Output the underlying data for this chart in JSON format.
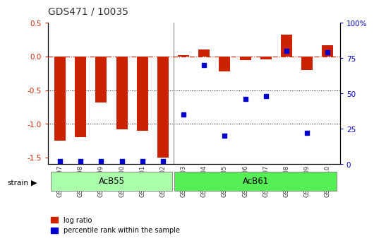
{
  "title": "GDS471 / 10035",
  "samples": [
    "GSM10997",
    "GSM10998",
    "GSM10999",
    "GSM11000",
    "GSM11001",
    "GSM11002",
    "GSM11003",
    "GSM11004",
    "GSM11005",
    "GSM11006",
    "GSM11007",
    "GSM11008",
    "GSM11009",
    "GSM11010"
  ],
  "log_ratio": [
    -1.25,
    -1.2,
    -0.68,
    -1.08,
    -1.1,
    -1.5,
    0.02,
    0.1,
    -0.22,
    -0.05,
    -0.04,
    0.32,
    -0.2,
    0.17
  ],
  "percentile_rank": [
    2,
    2,
    2,
    2,
    2,
    2,
    35,
    70,
    20,
    46,
    48,
    80,
    22,
    79
  ],
  "groups": [
    {
      "name": "AcB55",
      "start": 0,
      "end": 5,
      "color": "#aaffaa"
    },
    {
      "name": "AcB61",
      "start": 6,
      "end": 13,
      "color": "#55ee55"
    }
  ],
  "ylim_left": [
    -1.6,
    0.5
  ],
  "ylim_right": [
    0,
    100
  ],
  "bar_color": "#cc2200",
  "dot_color": "#0000cc",
  "zero_line_color": "#cc2200",
  "dotted_line_color": "#000000",
  "background_color": "#ffffff",
  "tick_label_color_left": "#cc2200",
  "tick_label_color_right": "#0000cc",
  "yticks_left": [
    -1.5,
    -1.0,
    -0.5,
    0.0,
    0.5
  ],
  "yticks_right": [
    0,
    25,
    50,
    75,
    100
  ],
  "group_separator": 5.5
}
